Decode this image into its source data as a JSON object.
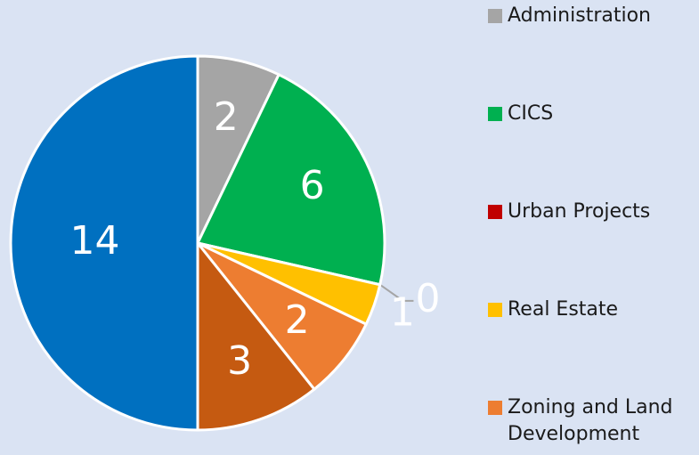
{
  "chart_data": {
    "type": "pie",
    "categories": [
      "Administration",
      "CICS",
      "Urban Projects",
      "Real Estate",
      "Zoning and Land Development",
      null,
      null
    ],
    "values": [
      2,
      6,
      0,
      1,
      2,
      3,
      14
    ],
    "colors": [
      "#a5a5a5",
      "#00b050",
      "#c00000",
      "#ffc000",
      "#ed7d31",
      "#c55a11",
      "#0070c0"
    ],
    "legend": "right"
  }
}
